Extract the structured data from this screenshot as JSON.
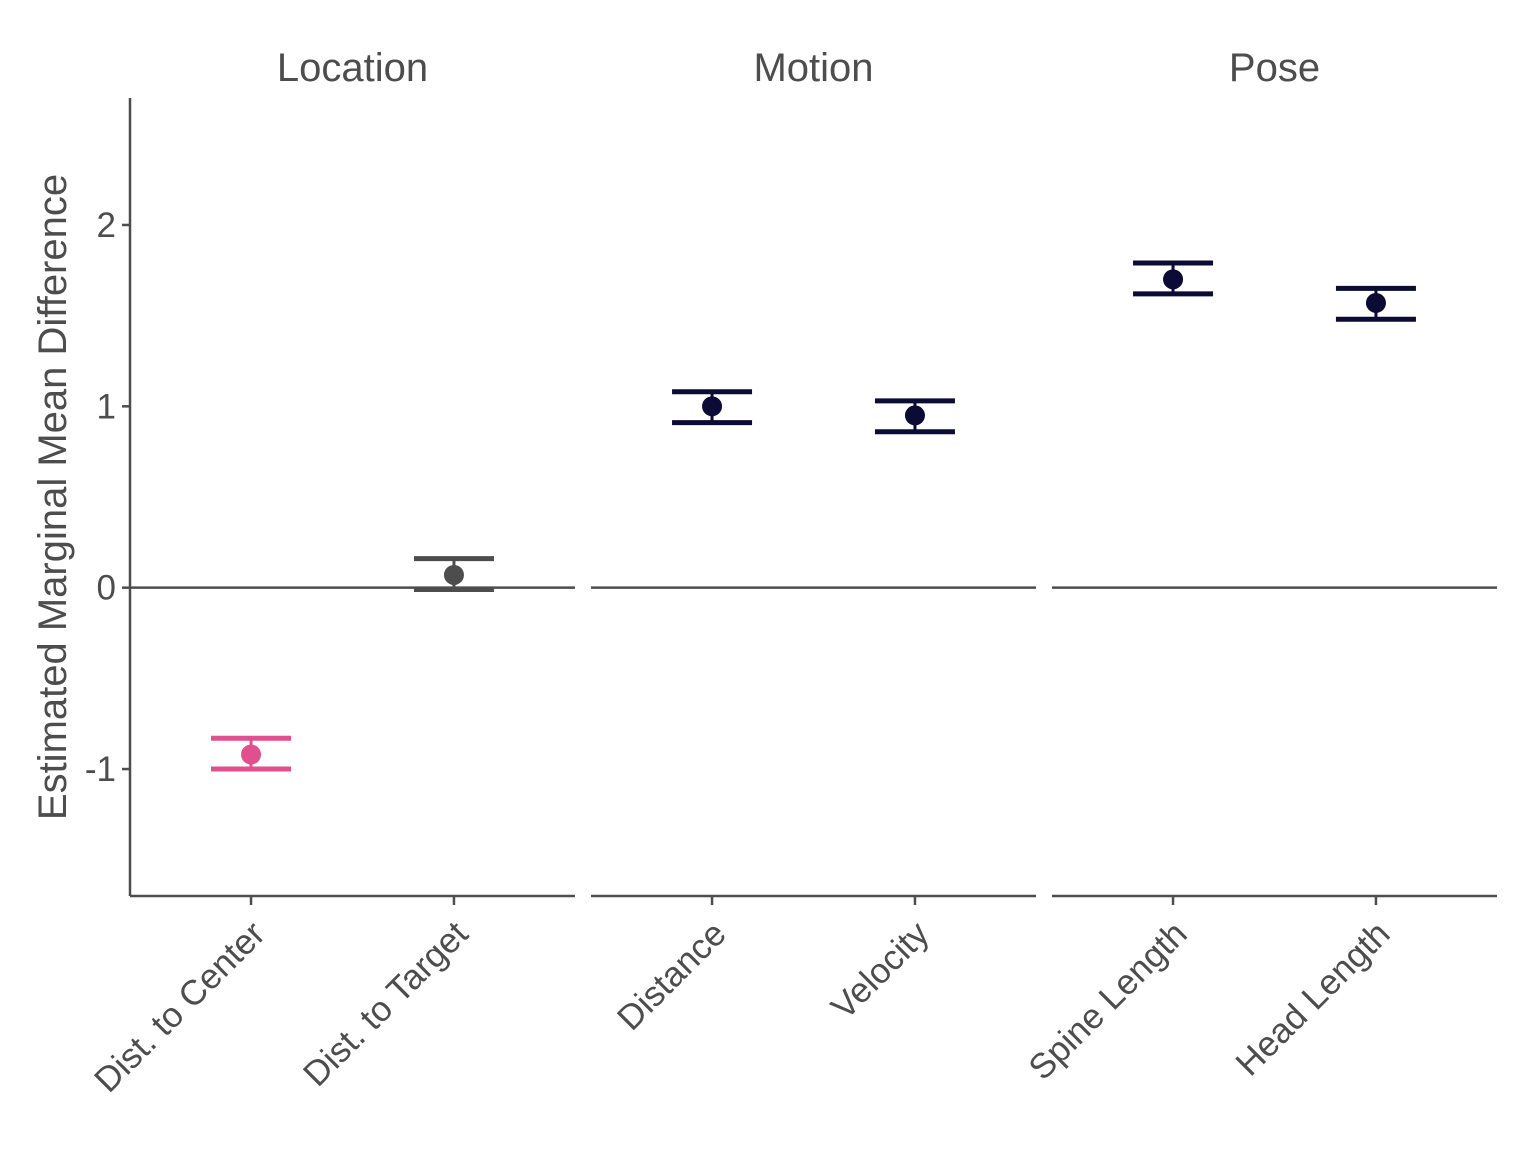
{
  "chart_data": {
    "type": "scatter",
    "ylabel": "Estimated Marginal Mean Difference",
    "xlabel": "",
    "ylim": [
      -1.7,
      2.7
    ],
    "yticks": [
      -1,
      0,
      1,
      2
    ],
    "hline": 0,
    "grid": false,
    "legend": "none",
    "colors": {
      "negative": "#e0508e",
      "neutral": "#4d4d4d",
      "positive": "#0b0b35"
    },
    "facets": [
      {
        "title": "Location",
        "points": [
          {
            "label": "Dist. to Center",
            "value": -0.92,
            "lower": -1.0,
            "upper": -0.83,
            "color": "#e0508e"
          },
          {
            "label": "Dist. to Target",
            "value": 0.07,
            "lower": -0.01,
            "upper": 0.16,
            "color": "#4d4d4d"
          }
        ]
      },
      {
        "title": "Motion",
        "points": [
          {
            "label": "Distance",
            "value": 1.0,
            "lower": 0.91,
            "upper": 1.08,
            "color": "#0b0b35"
          },
          {
            "label": "Velocity",
            "value": 0.95,
            "lower": 0.86,
            "upper": 1.03,
            "color": "#0b0b35"
          }
        ]
      },
      {
        "title": "Pose",
        "points": [
          {
            "label": "Spine Length",
            "value": 1.7,
            "lower": 1.62,
            "upper": 1.79,
            "color": "#0b0b35"
          },
          {
            "label": "Head Length",
            "value": 1.57,
            "lower": 1.48,
            "upper": 1.65,
            "color": "#0b0b35"
          }
        ]
      }
    ]
  }
}
